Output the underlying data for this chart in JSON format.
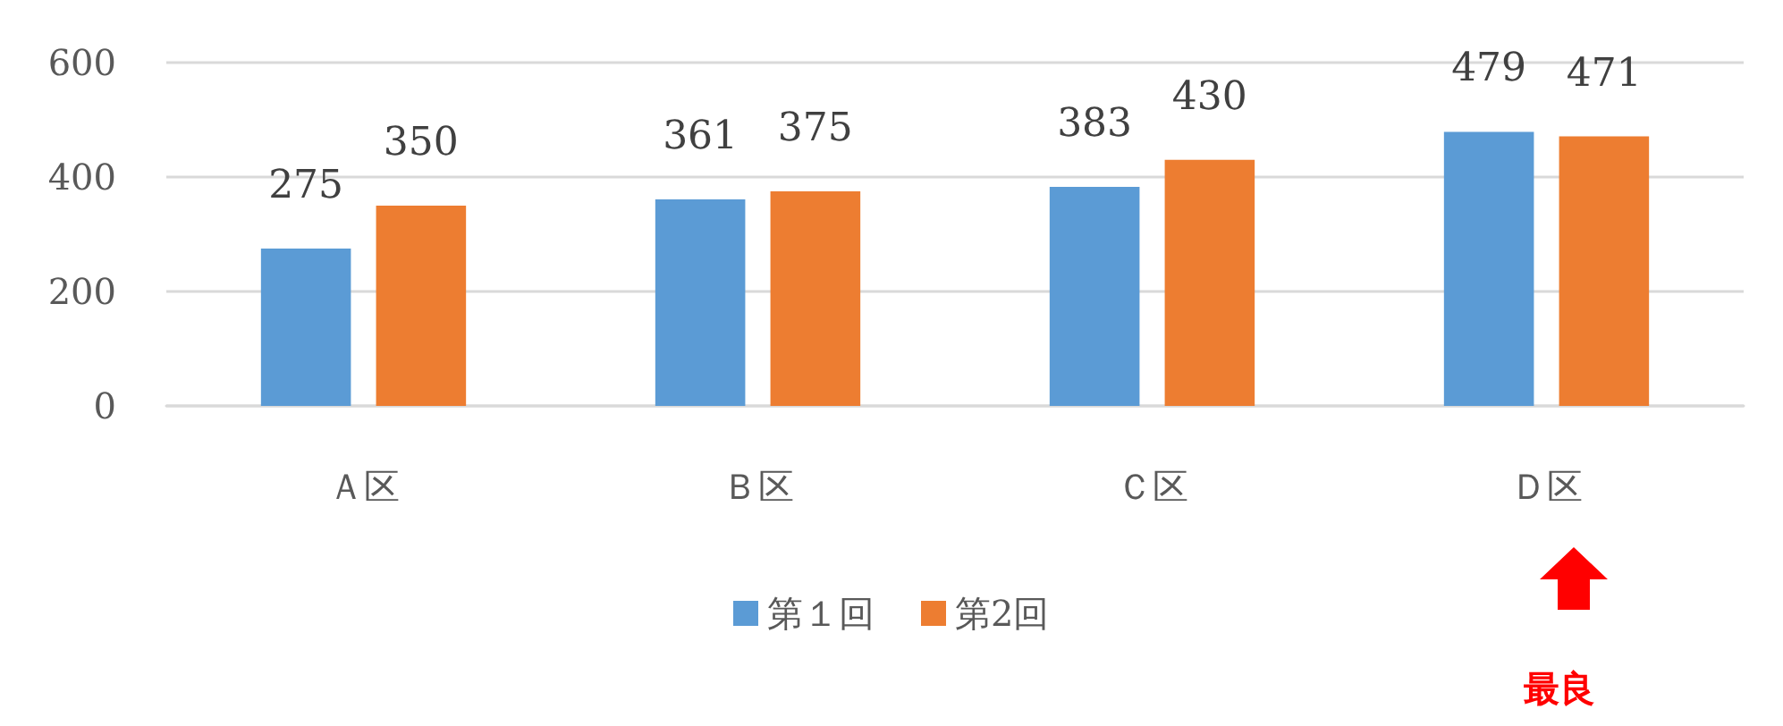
{
  "chart_data": {
    "type": "bar",
    "categories": [
      "Ａ区",
      "Ｂ区",
      "Ｃ区",
      "Ｄ区"
    ],
    "series": [
      {
        "name": "第１回",
        "color": "#5b9bd5",
        "values": [
          275,
          361,
          383,
          479
        ]
      },
      {
        "name": "第2回",
        "color": "#ed7d31",
        "values": [
          350,
          375,
          430,
          471
        ]
      }
    ],
    "ylim": [
      0,
      600
    ],
    "yticks": [
      0,
      200,
      400,
      600
    ],
    "grid": "y",
    "legend": "bottom",
    "data_labels": true,
    "annotations": [
      "最良"
    ]
  }
}
